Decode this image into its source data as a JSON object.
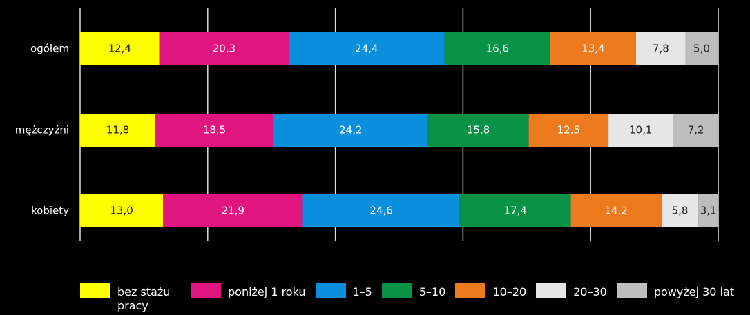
{
  "chart_data": {
    "type": "stacked-bar-horizontal",
    "categories": [
      "ogółem",
      "mężczyźni",
      "kobiety"
    ],
    "xlim": [
      0,
      100
    ],
    "xticks": [
      0,
      20,
      40,
      60,
      80,
      100
    ],
    "grid": true,
    "series": [
      {
        "name": "bez stażu pracy",
        "color": "#ffff00",
        "values": [
          12.4,
          11.8,
          13.0
        ],
        "value_labels": [
          "12,4",
          "11,8",
          "13,0"
        ]
      },
      {
        "name": "poniżej 1 roku",
        "color": "#e0157f",
        "values": [
          20.3,
          18.5,
          21.9
        ],
        "value_labels": [
          "20,3",
          "18,5",
          "21,9"
        ]
      },
      {
        "name": "1–5",
        "color": "#0a8fdc",
        "values": [
          24.4,
          24.2,
          24.6
        ],
        "value_labels": [
          "24,4",
          "24,2",
          "24,6"
        ]
      },
      {
        "name": "5–10",
        "color": "#079246",
        "values": [
          16.6,
          15.8,
          17.4
        ],
        "value_labels": [
          "16,6",
          "15,8",
          "17,4"
        ]
      },
      {
        "name": "10–20",
        "color": "#ee7a1e",
        "values": [
          13.4,
          12.5,
          14.2
        ],
        "value_labels": [
          "13,4",
          "12,5",
          "14,2"
        ]
      },
      {
        "name": "20–30",
        "color": "#e6e6e6",
        "values": [
          7.8,
          10.1,
          5.8
        ],
        "value_labels": [
          "7,8",
          "10,1",
          "5,8"
        ]
      },
      {
        "name": "powyżej 30 lat",
        "color": "#bdbdbd",
        "values": [
          5.0,
          7.2,
          3.1
        ],
        "value_labels": [
          "5,0",
          "7,2",
          "3,1"
        ]
      }
    ]
  }
}
